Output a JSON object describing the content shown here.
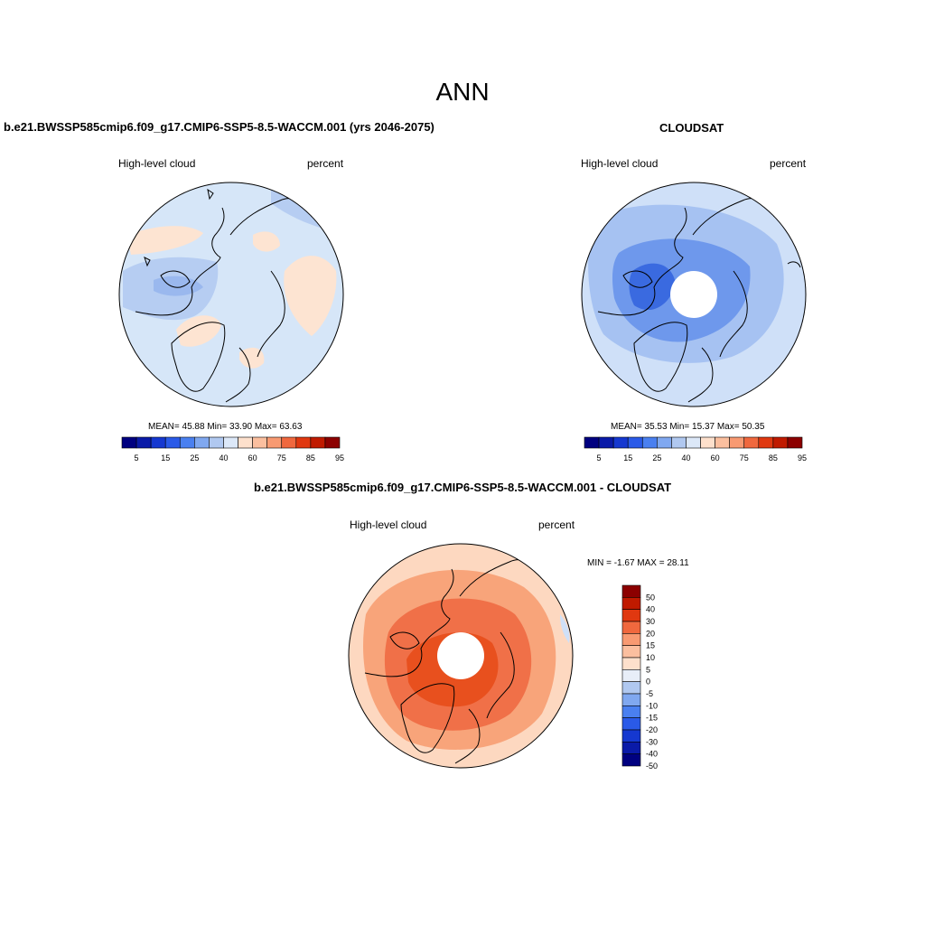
{
  "title": "ANN",
  "panels": [
    {
      "title": "b.e21.BWSSP585cmip6.f09_g17.CMIP6-SSP5-8.5-WACCM.001 (yrs 2046-2075)",
      "left_label": "High-level cloud",
      "right_label": "percent",
      "stats": {
        "mean": "45.88",
        "min": "33.90",
        "max": "63.63"
      },
      "stats_text": "MEAN=  45.88  Min=  33.90  Max=  63.63"
    },
    {
      "title": "CLOUDSAT",
      "left_label": "High-level cloud",
      "right_label": "percent",
      "stats": {
        "mean": "35.53",
        "min": "15.37",
        "max": "50.35"
      },
      "stats_text": "MEAN=  35.53  Min=  15.37  Max=  50.35"
    },
    {
      "title": "b.e21.BWSSP585cmip6.f09_g17.CMIP6-SSP5-8.5-WACCM.001 - CLOUDSAT",
      "left_label": "High-level cloud",
      "right_label": "percent",
      "stats": {
        "min": "-1.67",
        "max": "28.11"
      },
      "stats_text": "MIN =  -1.67 MAX =  28.11"
    }
  ],
  "colorbars": {
    "abs": {
      "colors": [
        "#000080",
        "#0a1aa8",
        "#1538d0",
        "#2a5ae8",
        "#4a80f0",
        "#80a8f0",
        "#b0c8f0",
        "#dce8f8",
        "#fde0cc",
        "#fbbf9f",
        "#f89a72",
        "#f0683e",
        "#e03810",
        "#c01a00",
        "#8c0000"
      ],
      "levels": [
        "5",
        "10",
        "15",
        "20",
        "25",
        "30",
        "40",
        "50",
        "60",
        "70",
        "75",
        "80",
        "85",
        "90",
        "95"
      ],
      "labels": [
        "5",
        "15",
        "25",
        "40",
        "60",
        "75",
        "85",
        "95"
      ]
    },
    "diff": {
      "colors": [
        "#000080",
        "#0a1aa8",
        "#1538d0",
        "#2a5ae8",
        "#4a80f0",
        "#80a8f0",
        "#b0c8f0",
        "#e8eef8",
        "#fde0cc",
        "#fbbf9f",
        "#f89a72",
        "#f0683e",
        "#e03810",
        "#c01a00",
        "#8c0000"
      ],
      "labels": [
        "50",
        "40",
        "30",
        "20",
        "15",
        "10",
        "5",
        "0",
        "-5",
        "-10",
        "-15",
        "-20",
        "-30",
        "-40",
        "-50"
      ]
    }
  },
  "map_colors": {
    "model_bg": "#d6e6f8",
    "model_blue": "#b6cdf2",
    "model_blue2": "#9ab8ee",
    "model_orange": "#fde4d2",
    "obs_outer": "#cfe0f8",
    "obs_mid": "#a6c2f2",
    "obs_inner": "#6e98ec",
    "obs_core": "#3a6ae0",
    "diff_outer": "#fdd8c0",
    "diff_mid": "#f8a47a",
    "diff_inner": "#f07048",
    "diff_core": "#e8501e",
    "coast": "#000000"
  }
}
